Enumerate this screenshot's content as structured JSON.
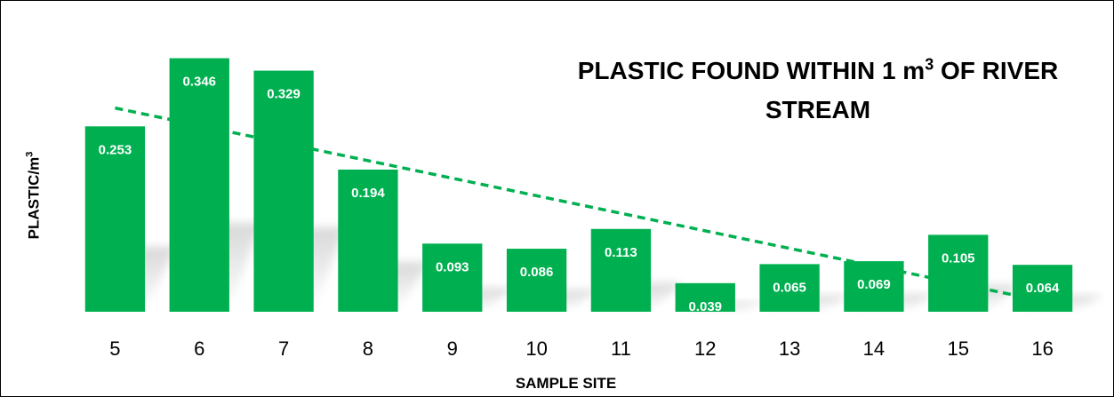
{
  "chart_data": {
    "type": "bar",
    "title": "PLASTIC FOUND WITHIN 1 m",
    "title_superscript": "3",
    "title_tail": " OF RIVER STREAM",
    "xlabel": "SAMPLE SITE",
    "ylabel": "PLASTIC/m",
    "ylabel_superscript": "3",
    "categories": [
      "5",
      "6",
      "7",
      "8",
      "9",
      "10",
      "11",
      "12",
      "13",
      "14",
      "15",
      "16"
    ],
    "values": [
      0.253,
      0.346,
      0.329,
      0.194,
      0.093,
      0.086,
      0.113,
      0.039,
      0.065,
      0.069,
      0.105,
      0.064
    ],
    "data_labels": [
      "0.253",
      "0.346",
      "0.329",
      "0.194",
      "0.093",
      "0.086",
      "0.113",
      "0.039",
      "0.065",
      "0.069",
      "0.105",
      "0.064"
    ],
    "ylim": [
      0,
      0.36
    ],
    "trendline": {
      "type": "linear",
      "style": "dashed"
    },
    "grid": false,
    "legend": "none",
    "bar_color": "#00b050",
    "trend_color": "#00b050"
  }
}
